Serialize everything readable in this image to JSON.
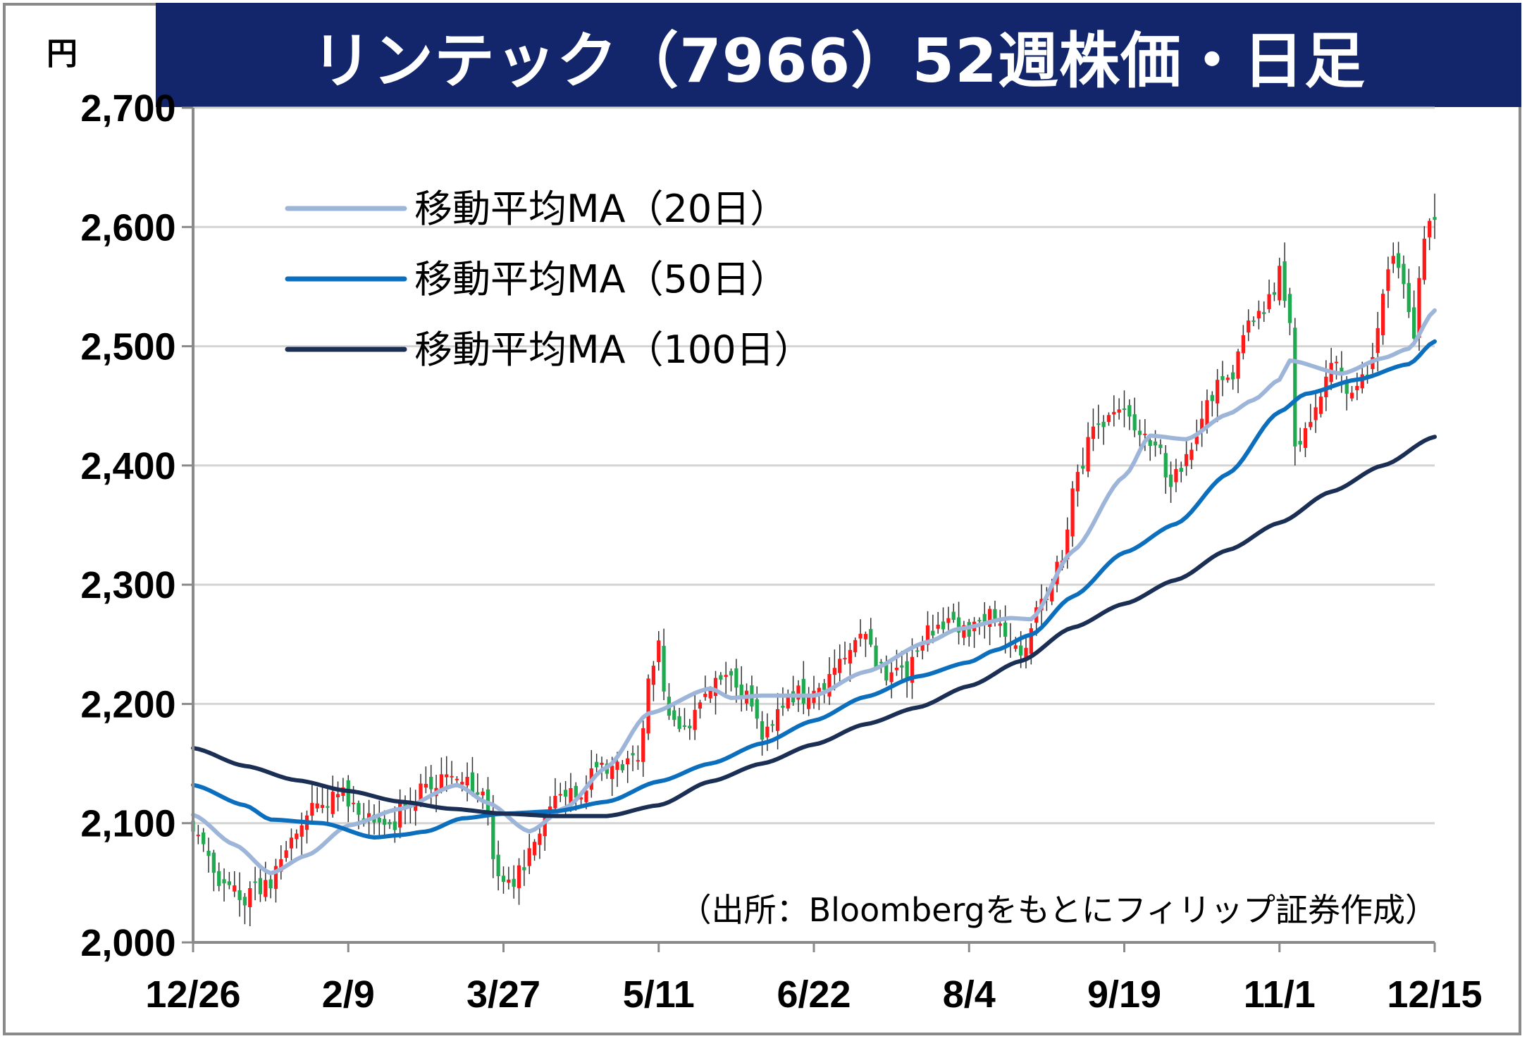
{
  "title": "リンテック（7966）52週株価・日足",
  "unit": "円",
  "source": "（出所：Bloombergをもとにフィリップ証券作成）",
  "colors": {
    "title_bg": "#13256b",
    "up": "#ff1a1a",
    "down": "#1faa4f",
    "ma20": "#9db5d8",
    "ma50": "#0b6fbe",
    "ma100": "#1b2f55",
    "grid": "#d4d4d4",
    "axis": "#8a8a8a"
  },
  "chart_data": {
    "type": "candlestick",
    "ylim": [
      2000,
      2700
    ],
    "yticks": [
      {
        "value": 2000,
        "label": "2,000"
      },
      {
        "value": 2100,
        "label": "2,100"
      },
      {
        "value": 2200,
        "label": "2,200"
      },
      {
        "value": 2300,
        "label": "2,300"
      },
      {
        "value": 2400,
        "label": "2,400"
      },
      {
        "value": 2500,
        "label": "2,500"
      },
      {
        "value": 2600,
        "label": "2,600"
      },
      {
        "value": 2700,
        "label": "2,700"
      }
    ],
    "xticks": [
      {
        "index": 0,
        "label": "12/26"
      },
      {
        "index": 30,
        "label": "2/9"
      },
      {
        "index": 60,
        "label": "3/27"
      },
      {
        "index": 90,
        "label": "5/11"
      },
      {
        "index": 120,
        "label": "6/22"
      },
      {
        "index": 150,
        "label": "8/4"
      },
      {
        "index": 180,
        "label": "9/19"
      },
      {
        "index": 210,
        "label": "11/1"
      },
      {
        "index": 240,
        "label": "12/15"
      }
    ],
    "n_days": 241,
    "series": [
      {
        "name": "移動平均MA（20日）",
        "key": "ma20",
        "anchors": [
          [
            0,
            2107
          ],
          [
            8,
            2082
          ],
          [
            15,
            2058
          ],
          [
            22,
            2073
          ],
          [
            30,
            2098
          ],
          [
            40,
            2112
          ],
          [
            51,
            2132
          ],
          [
            57,
            2117
          ],
          [
            65,
            2093
          ],
          [
            72,
            2113
          ],
          [
            80,
            2147
          ],
          [
            88,
            2192
          ],
          [
            100,
            2213
          ],
          [
            104,
            2205
          ],
          [
            110,
            2207
          ],
          [
            120,
            2207
          ],
          [
            130,
            2227
          ],
          [
            142,
            2252
          ],
          [
            148,
            2263
          ],
          [
            158,
            2272
          ],
          [
            162,
            2271
          ],
          [
            170,
            2328
          ],
          [
            180,
            2391
          ],
          [
            185,
            2425
          ],
          [
            192,
            2422
          ],
          [
            200,
            2443
          ],
          [
            205,
            2455
          ],
          [
            210,
            2472
          ],
          [
            212,
            2488
          ],
          [
            222,
            2477
          ],
          [
            230,
            2490
          ],
          [
            235,
            2498
          ],
          [
            240,
            2530
          ]
        ]
      },
      {
        "name": "移動平均MA（50日）",
        "key": "ma50",
        "anchors": [
          [
            0,
            2132
          ],
          [
            10,
            2115
          ],
          [
            15,
            2103
          ],
          [
            25,
            2100
          ],
          [
            35,
            2088
          ],
          [
            40,
            2090
          ],
          [
            45,
            2093
          ],
          [
            52,
            2104
          ],
          [
            60,
            2108
          ],
          [
            70,
            2110
          ],
          [
            80,
            2118
          ],
          [
            90,
            2135
          ],
          [
            100,
            2150
          ],
          [
            110,
            2167
          ],
          [
            120,
            2186
          ],
          [
            130,
            2206
          ],
          [
            140,
            2223
          ],
          [
            150,
            2235
          ],
          [
            155,
            2245
          ],
          [
            162,
            2258
          ],
          [
            170,
            2290
          ],
          [
            180,
            2327
          ],
          [
            190,
            2351
          ],
          [
            200,
            2393
          ],
          [
            210,
            2445
          ],
          [
            215,
            2460
          ],
          [
            225,
            2472
          ],
          [
            235,
            2485
          ],
          [
            240,
            2504
          ]
        ]
      },
      {
        "name": "移動平均MA（100日）",
        "key": "ma100",
        "anchors": [
          [
            0,
            2163
          ],
          [
            10,
            2148
          ],
          [
            20,
            2136
          ],
          [
            30,
            2127
          ],
          [
            40,
            2118
          ],
          [
            50,
            2112
          ],
          [
            60,
            2108
          ],
          [
            70,
            2106
          ],
          [
            80,
            2106
          ],
          [
            90,
            2115
          ],
          [
            100,
            2135
          ],
          [
            110,
            2150
          ],
          [
            120,
            2166
          ],
          [
            130,
            2183
          ],
          [
            140,
            2197
          ],
          [
            150,
            2215
          ],
          [
            160,
            2236
          ],
          [
            170,
            2264
          ],
          [
            180,
            2284
          ],
          [
            190,
            2304
          ],
          [
            200,
            2329
          ],
          [
            210,
            2352
          ],
          [
            220,
            2378
          ],
          [
            230,
            2400
          ],
          [
            240,
            2424
          ]
        ]
      }
    ],
    "candles": {
      "start": 2094,
      "waypoints": [
        [
          0,
          2094
        ],
        [
          5,
          2047
        ],
        [
          10,
          2036
        ],
        [
          14,
          2048
        ],
        [
          18,
          2077
        ],
        [
          22,
          2107
        ],
        [
          26,
          2118
        ],
        [
          30,
          2122
        ],
        [
          34,
          2101
        ],
        [
          38,
          2097
        ],
        [
          42,
          2120
        ],
        [
          46,
          2134
        ],
        [
          50,
          2140
        ],
        [
          53,
          2132
        ],
        [
          56,
          2121
        ],
        [
          58,
          2075
        ],
        [
          60,
          2047
        ],
        [
          62,
          2052
        ],
        [
          66,
          2082
        ],
        [
          70,
          2124
        ],
        [
          74,
          2121
        ],
        [
          78,
          2147
        ],
        [
          82,
          2144
        ],
        [
          86,
          2158
        ],
        [
          88,
          2213
        ],
        [
          90,
          2246
        ],
        [
          92,
          2185
        ],
        [
          96,
          2188
        ],
        [
          100,
          2215
        ],
        [
          104,
          2228
        ],
        [
          106,
          2212
        ],
        [
          110,
          2171
        ],
        [
          114,
          2205
        ],
        [
          118,
          2208
        ],
        [
          122,
          2218
        ],
        [
          126,
          2242
        ],
        [
          130,
          2256
        ],
        [
          134,
          2223
        ],
        [
          138,
          2228
        ],
        [
          142,
          2263
        ],
        [
          146,
          2272
        ],
        [
          150,
          2258
        ],
        [
          154,
          2275
        ],
        [
          157,
          2263
        ],
        [
          160,
          2240
        ],
        [
          164,
          2283
        ],
        [
          168,
          2323
        ],
        [
          171,
          2392
        ],
        [
          174,
          2428
        ],
        [
          178,
          2439
        ],
        [
          182,
          2438
        ],
        [
          186,
          2418
        ],
        [
          189,
          2383
        ],
        [
          192,
          2402
        ],
        [
          196,
          2456
        ],
        [
          200,
          2471
        ],
        [
          204,
          2514
        ],
        [
          207,
          2532
        ],
        [
          210,
          2560
        ],
        [
          212,
          2522
        ],
        [
          213,
          2416
        ],
        [
          216,
          2432
        ],
        [
          220,
          2482
        ],
        [
          224,
          2466
        ],
        [
          228,
          2483
        ],
        [
          230,
          2552
        ],
        [
          232,
          2572
        ],
        [
          233,
          2558
        ],
        [
          236,
          2515
        ],
        [
          238,
          2588
        ],
        [
          240,
          2606
        ]
      ],
      "last_close": 2606,
      "last_high": 2628,
      "last_low": 2590
    }
  },
  "legend": [
    {
      "label": "移動平均MA（20日）",
      "key": "ma20"
    },
    {
      "label": "移動平均MA（50日）",
      "key": "ma50"
    },
    {
      "label": "移動平均MA（100日）",
      "key": "ma100"
    }
  ]
}
